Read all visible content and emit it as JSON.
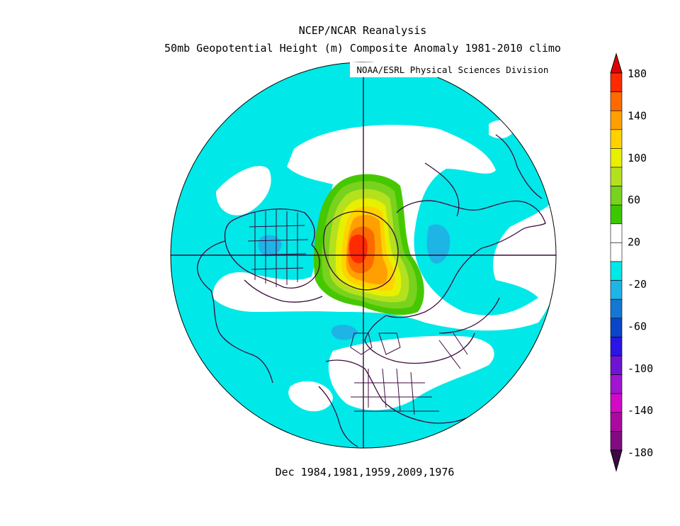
{
  "header": {
    "title_line1": "NCEP/NCAR Reanalysis",
    "title_line2": "50mb Geopotential Height (m) Composite Anomaly 1981-2010 climo",
    "credit": "NOAA/ESRL Physical Sciences Division"
  },
  "subtitle": "Dec 1984,1981,1959,2009,1976",
  "colors": {
    "ocean_anomaly": "#00e8e8",
    "neutral": "#ffffff",
    "land_lines": "#3d0a3d",
    "meridians": "#3d0a3d"
  },
  "colorbar": {
    "labels": [
      "180",
      "140",
      "100",
      "60",
      "20",
      "-20",
      "-60",
      "-100",
      "-140",
      "-180"
    ],
    "colors": [
      "#ff2a00",
      "#ff6a00",
      "#ffa000",
      "#ffd200",
      "#e8f000",
      "#b4e11e",
      "#78d21e",
      "#3cc800",
      "#ffffff",
      "#ffffff",
      "#00e8e8",
      "#1eb4e6",
      "#1478d2",
      "#0a46c8",
      "#2a14e6",
      "#6e14d2",
      "#a014d2",
      "#d20ac8",
      "#aa0aa0",
      "#820a82"
    ],
    "arrow_top_color": "#e10000",
    "arrow_bottom_color": "#3c0a46"
  },
  "map": {
    "projection": "north polar stereographic",
    "field": "50mb geopotential height anomaly"
  }
}
